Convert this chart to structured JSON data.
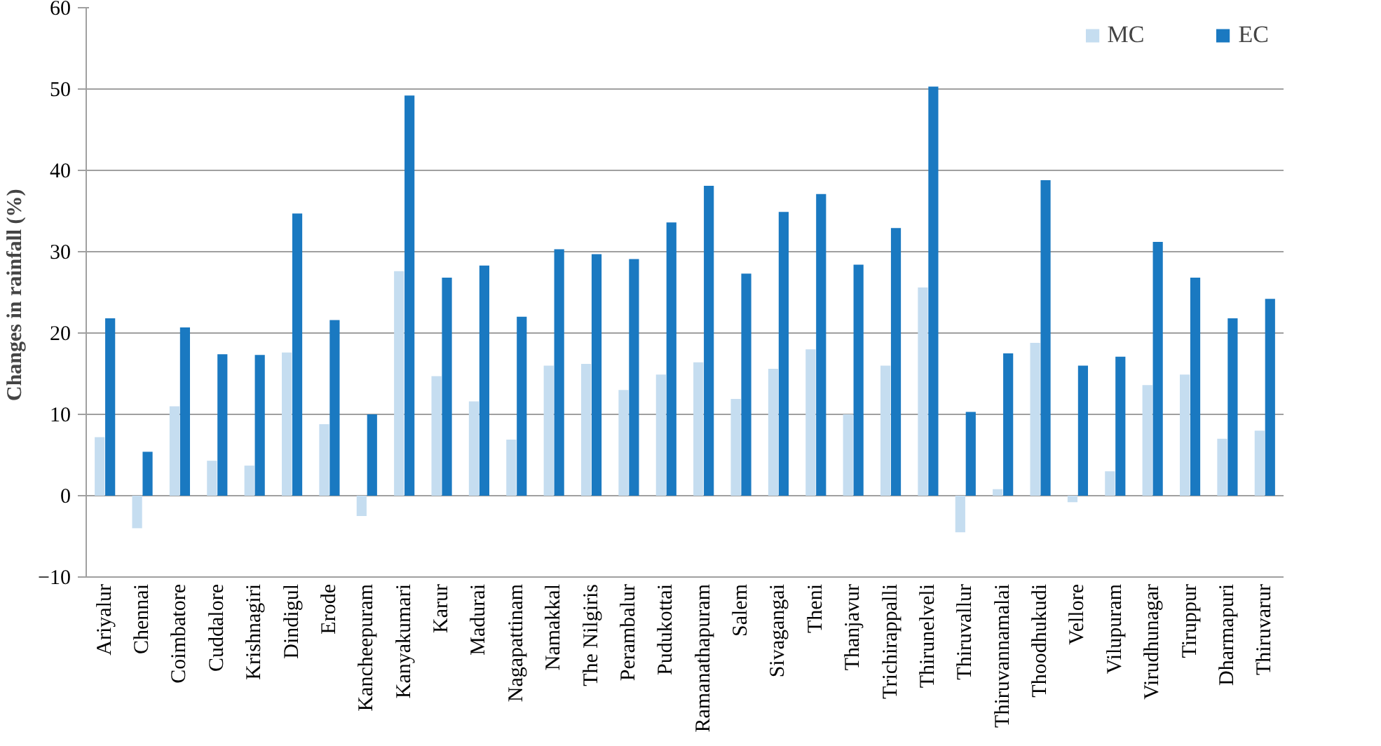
{
  "chart_data": {
    "type": "bar",
    "ylabel": "Changes in rainfall  (%)",
    "categories": [
      "Ariyalur",
      "Chennai",
      "Coimbatore",
      "Cuddalore",
      "Krishnagiri",
      "Dindigul",
      "Erode",
      "Kancheepuram",
      "Kanyakumari",
      "Karur",
      "Madurai",
      "Nagapattinam",
      "Namakkal",
      "The Nilgiris",
      "Perambalur",
      "Pudukottai",
      "Ramanathapuram",
      "Salem",
      "Sivagangai",
      "Theni",
      "Thanjavur",
      "Trichirappalli",
      "Thirunelveli",
      "Thiruvallur",
      "Thiruvannamalai",
      "Thoodhukudi",
      "Vellore",
      "Vilupuram",
      "Virudhunagar",
      "Tiruppur",
      "Dharmapuri",
      "Thiruvarur"
    ],
    "series": [
      {
        "name": "MC",
        "color": "#c5ddf0",
        "values": [
          7.2,
          -4,
          11,
          4.3,
          3.7,
          17.6,
          8.8,
          -2.5,
          27.6,
          14.7,
          11.6,
          6.9,
          16,
          16.2,
          13,
          14.9,
          16.4,
          11.9,
          15.6,
          18,
          10,
          16,
          25.6,
          -4.5,
          0.8,
          18.8,
          -0.8,
          3,
          13.6,
          14.9,
          7,
          8
        ]
      },
      {
        "name": "EC",
        "color": "#1a79c1",
        "values": [
          21.8,
          5.4,
          20.7,
          17.4,
          17.3,
          34.7,
          21.6,
          10,
          49.2,
          26.8,
          28.3,
          22,
          30.3,
          29.7,
          29.1,
          33.6,
          38.1,
          27.3,
          34.9,
          37.1,
          28.4,
          32.9,
          50.3,
          10.3,
          17.5,
          38.8,
          16,
          17.1,
          31.2,
          26.8,
          21.8,
          24.2
        ]
      }
    ],
    "ylim": [
      -10,
      60
    ],
    "yticks": [
      -10,
      0,
      10,
      20,
      30,
      40,
      50,
      60
    ],
    "grid": "y",
    "legend": "top right"
  }
}
